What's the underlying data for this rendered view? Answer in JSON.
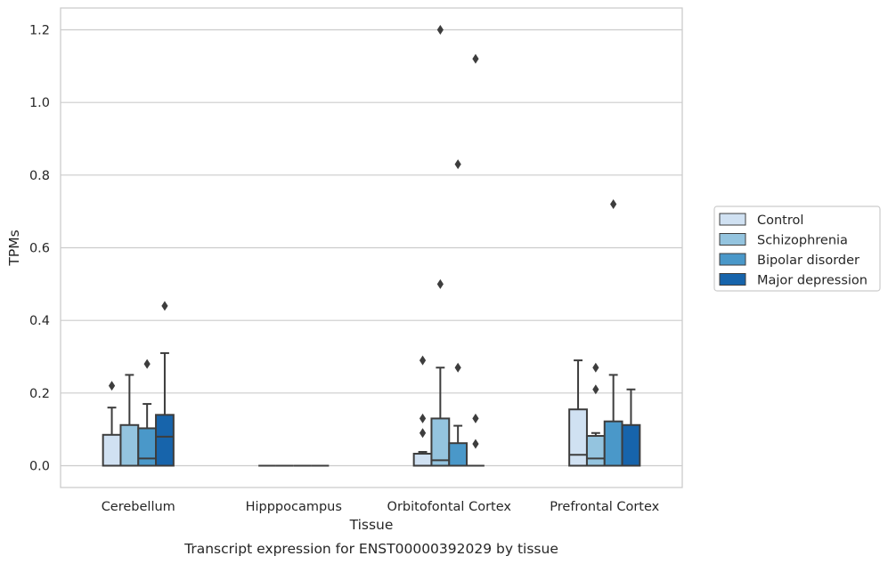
{
  "chart_data": {
    "type": "box",
    "caption": "Transcript expression for ENST00000392029 by tissue",
    "xlabel": "Tissue",
    "ylabel": "TPMs",
    "ylim": [
      -0.06,
      1.26
    ],
    "yticks": [
      0.0,
      0.2,
      0.4,
      0.6,
      0.8,
      1.0,
      1.2
    ],
    "ytick_labels": [
      "0.0",
      "0.2",
      "0.4",
      "0.6",
      "0.8",
      "1.0",
      "1.2"
    ],
    "grid": true,
    "legend_position": "right",
    "categories": [
      "Cerebellum",
      "Hipppocampus",
      "Orbitofontal Cortex",
      "Prefrontal Cortex"
    ],
    "series": [
      {
        "name": "Control",
        "color": "#d0e1f2",
        "boxes": [
          {
            "q1": 0.0,
            "median": 0.0,
            "q3": 0.085,
            "whisker_low": 0.0,
            "whisker_high": 0.16,
            "outliers": [
              0.22
            ]
          },
          {
            "q1": 0.0,
            "median": 0.0,
            "q3": 0.0,
            "whisker_low": 0.0,
            "whisker_high": 0.0,
            "outliers": []
          },
          {
            "q1": 0.0,
            "median": 0.0,
            "q3": 0.033,
            "whisker_low": 0.0,
            "whisker_high": 0.038,
            "outliers": [
              0.09,
              0.13,
              0.29
            ]
          },
          {
            "q1": 0.0,
            "median": 0.03,
            "q3": 0.155,
            "whisker_low": 0.0,
            "whisker_high": 0.29,
            "outliers": []
          }
        ]
      },
      {
        "name": "Schizophrenia",
        "color": "#94c4df",
        "boxes": [
          {
            "q1": 0.0,
            "median": 0.0,
            "q3": 0.112,
            "whisker_low": 0.0,
            "whisker_high": 0.25,
            "outliers": []
          },
          {
            "q1": 0.0,
            "median": 0.0,
            "q3": 0.0,
            "whisker_low": 0.0,
            "whisker_high": 0.0,
            "outliers": []
          },
          {
            "q1": 0.0,
            "median": 0.015,
            "q3": 0.13,
            "whisker_low": 0.0,
            "whisker_high": 0.27,
            "outliers": [
              0.5,
              1.2
            ]
          },
          {
            "q1": 0.0,
            "median": 0.02,
            "q3": 0.082,
            "whisker_low": 0.0,
            "whisker_high": 0.09,
            "outliers": [
              0.21,
              0.27
            ]
          }
        ]
      },
      {
        "name": "Bipolar disorder",
        "color": "#4a98c9",
        "boxes": [
          {
            "q1": 0.0,
            "median": 0.02,
            "q3": 0.103,
            "whisker_low": 0.0,
            "whisker_high": 0.17,
            "outliers": [
              0.28
            ]
          },
          {
            "q1": 0.0,
            "median": 0.0,
            "q3": 0.0,
            "whisker_low": 0.0,
            "whisker_high": 0.0,
            "outliers": []
          },
          {
            "q1": 0.0,
            "median": 0.0,
            "q3": 0.062,
            "whisker_low": 0.0,
            "whisker_high": 0.11,
            "outliers": [
              0.27,
              0.83
            ]
          },
          {
            "q1": 0.0,
            "median": 0.0,
            "q3": 0.122,
            "whisker_low": 0.0,
            "whisker_high": 0.25,
            "outliers": [
              0.72
            ]
          }
        ]
      },
      {
        "name": "Major depression",
        "color": "#1764ab",
        "boxes": [
          {
            "q1": 0.0,
            "median": 0.08,
            "q3": 0.14,
            "whisker_low": 0.0,
            "whisker_high": 0.31,
            "outliers": [
              0.44
            ]
          },
          {
            "q1": 0.0,
            "median": 0.0,
            "q3": 0.0,
            "whisker_low": 0.0,
            "whisker_high": 0.0,
            "outliers": []
          },
          {
            "q1": 0.0,
            "median": 0.0,
            "q3": 0.0,
            "whisker_low": 0.0,
            "whisker_high": 0.0,
            "outliers": [
              0.06,
              0.13,
              1.12
            ]
          },
          {
            "q1": 0.0,
            "median": 0.0,
            "q3": 0.112,
            "whisker_low": 0.0,
            "whisker_high": 0.21,
            "outliers": []
          }
        ]
      }
    ]
  }
}
